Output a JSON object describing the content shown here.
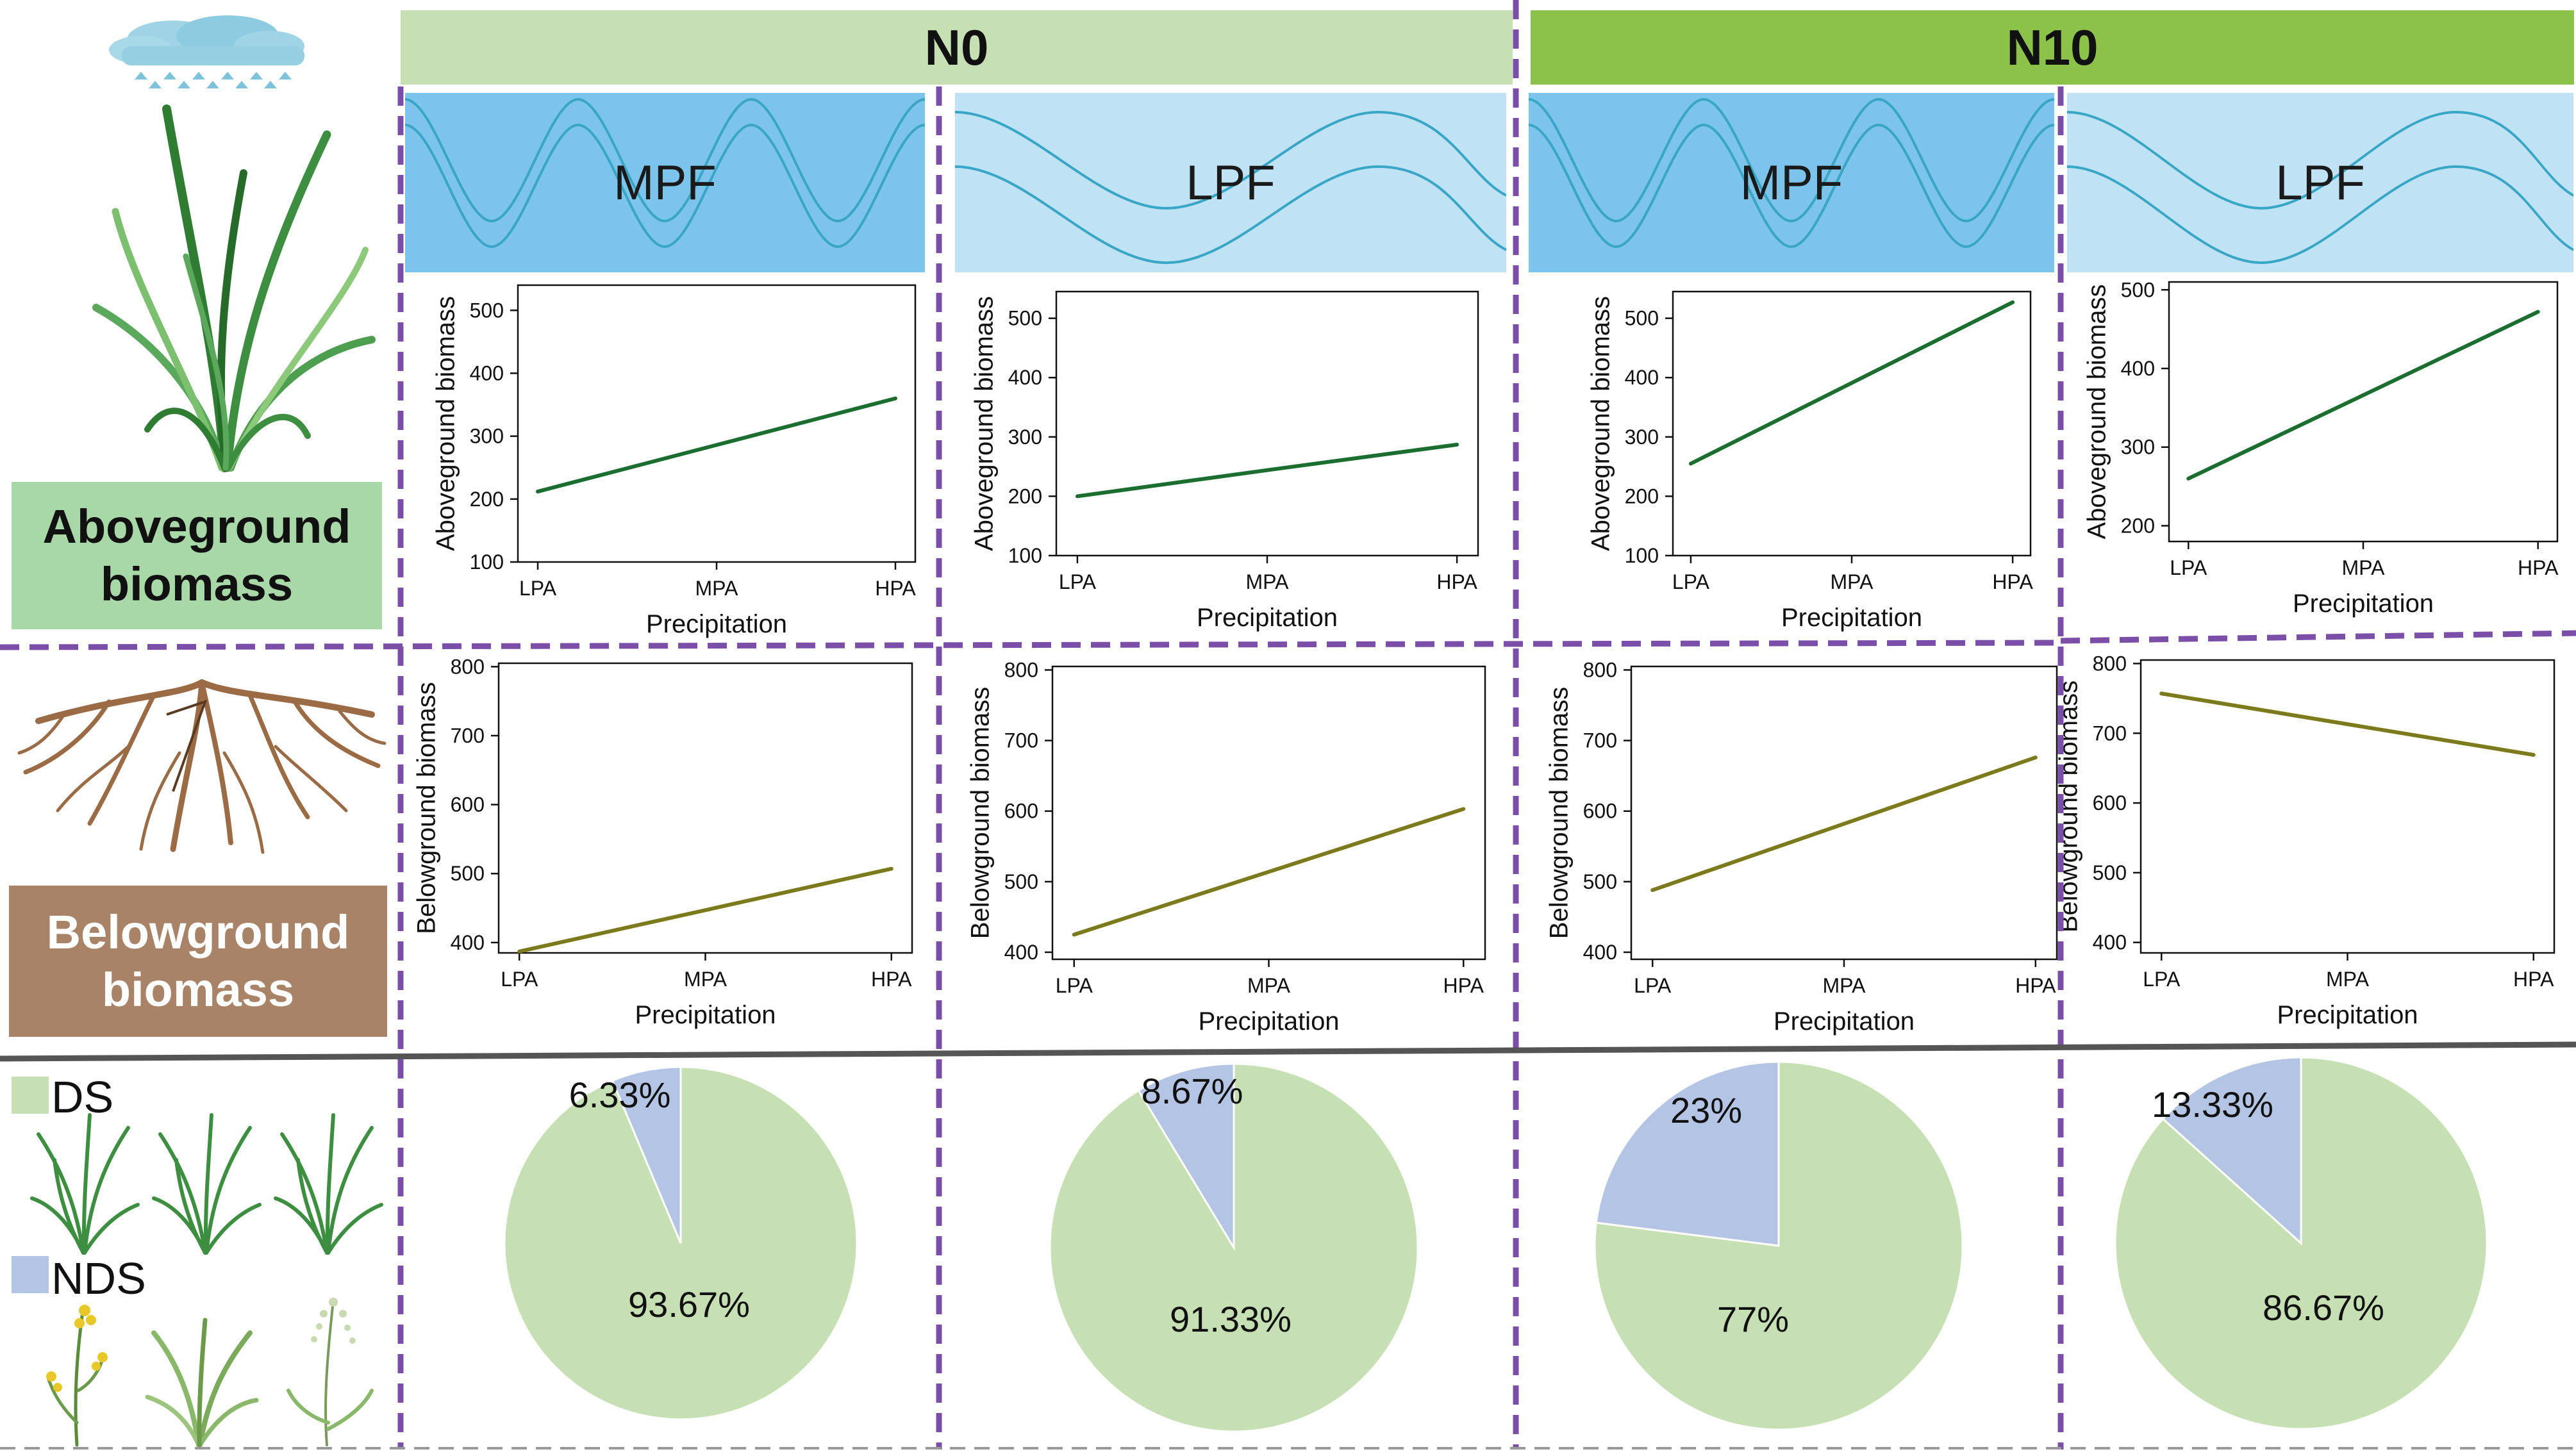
{
  "headers": {
    "n0": "N0",
    "n10": "N10"
  },
  "frequency_labels": [
    "MPF",
    "LPF",
    "MPF",
    "LPF"
  ],
  "row_labels": {
    "aboveground": "Aboveground biomass",
    "belowground": "Belowground biomass"
  },
  "legend": [
    {
      "label": "DS",
      "color": "#c6e0b4"
    },
    {
      "label": "NDS",
      "color": "#b4c4e4"
    }
  ],
  "colors": {
    "header_n0": "#c6e0b4",
    "header_n10": "#8bc34a",
    "mpf_band": "#7cc4ec",
    "lpf_band": "#bfe3f5",
    "wave_stroke": "#3aa6c6",
    "above_line": "#1b6e30",
    "below_line": "#7b7a1d",
    "above_label_bg": "#a9d8a8",
    "below_label_bg": "#a88367",
    "divider": "#7b4fa8",
    "pie_ds": "#c6e0b4",
    "pie_nds": "#b4c4e4"
  },
  "chart_data": [
    {
      "id": "ag-n0-mpf",
      "type": "line",
      "xlabel": "Precipitation",
      "ylabel": "Aboveground biomass",
      "categories": [
        "LPA",
        "MPA",
        "HPA"
      ],
      "yticks": [
        100,
        200,
        300,
        400,
        500
      ],
      "ylim": [
        100,
        540
      ],
      "values": [
        212,
        286,
        360
      ]
    },
    {
      "id": "ag-n0-lpf",
      "type": "line",
      "xlabel": "Precipitation",
      "ylabel": "Aboveground biomass",
      "categories": [
        "LPA",
        "MPA",
        "HPA"
      ],
      "yticks": [
        100,
        200,
        300,
        400,
        500
      ],
      "ylim": [
        100,
        545
      ],
      "values": [
        200,
        244,
        287
      ]
    },
    {
      "id": "ag-n10-mpf",
      "type": "line",
      "xlabel": "Precipitation",
      "ylabel": "Aboveground biomass",
      "categories": [
        "LPA",
        "MPA",
        "HPA"
      ],
      "yticks": [
        100,
        200,
        300,
        400,
        500
      ],
      "ylim": [
        100,
        545
      ],
      "values": [
        255,
        391,
        527
      ]
    },
    {
      "id": "ag-n10-lpf",
      "type": "line",
      "xlabel": "Precipitation",
      "ylabel": "Aboveground biomass",
      "categories": [
        "LPA",
        "MPA",
        "HPA"
      ],
      "yticks": [
        200,
        300,
        400,
        500
      ],
      "ylim": [
        180,
        510
      ],
      "values": [
        260,
        366,
        472
      ]
    },
    {
      "id": "bg-n0-mpf",
      "type": "line",
      "xlabel": "Precipitation",
      "ylabel": "Belowground biomass",
      "categories": [
        "LPA",
        "MPA",
        "HPA"
      ],
      "yticks": [
        400,
        500,
        600,
        700,
        800
      ],
      "ylim": [
        385,
        805
      ],
      "values": [
        387,
        447,
        507
      ]
    },
    {
      "id": "bg-n0-lpf",
      "type": "line",
      "xlabel": "Precipitation",
      "ylabel": "Belowground biomass",
      "categories": [
        "LPA",
        "MPA",
        "HPA"
      ],
      "yticks": [
        400,
        500,
        600,
        700,
        800
      ],
      "ylim": [
        390,
        805
      ],
      "values": [
        425,
        514,
        603
      ]
    },
    {
      "id": "bg-n10-mpf",
      "type": "line",
      "xlabel": "Precipitation",
      "ylabel": "Belowground biomass",
      "categories": [
        "LPA",
        "MPA",
        "HPA"
      ],
      "yticks": [
        400,
        500,
        600,
        700,
        800
      ],
      "ylim": [
        390,
        805
      ],
      "values": [
        488,
        582,
        676
      ]
    },
    {
      "id": "bg-n10-lpf",
      "type": "line",
      "xlabel": "Precipitation",
      "ylabel": "Belowground biomass",
      "categories": [
        "LPA",
        "MPA",
        "HPA"
      ],
      "yticks": [
        400,
        500,
        600,
        700,
        800
      ],
      "ylim": [
        385,
        805
      ],
      "values": [
        757,
        713,
        669
      ]
    },
    {
      "id": "pie-n0-mpf",
      "type": "pie",
      "slices": [
        {
          "label": "DS",
          "value": 93.67,
          "text": "93.67%"
        },
        {
          "label": "NDS",
          "value": 6.33,
          "text": "6.33%"
        }
      ]
    },
    {
      "id": "pie-n0-lpf",
      "type": "pie",
      "slices": [
        {
          "label": "DS",
          "value": 91.33,
          "text": "91.33%"
        },
        {
          "label": "NDS",
          "value": 8.67,
          "text": "8.67%"
        }
      ]
    },
    {
      "id": "pie-n10-mpf",
      "type": "pie",
      "slices": [
        {
          "label": "DS",
          "value": 77,
          "text": "77%"
        },
        {
          "label": "NDS",
          "value": 23,
          "text": "23%"
        }
      ]
    },
    {
      "id": "pie-n10-lpf",
      "type": "pie",
      "slices": [
        {
          "label": "DS",
          "value": 86.67,
          "text": "86.67%"
        },
        {
          "label": "NDS",
          "value": 13.33,
          "text": "13.33%"
        }
      ]
    }
  ]
}
